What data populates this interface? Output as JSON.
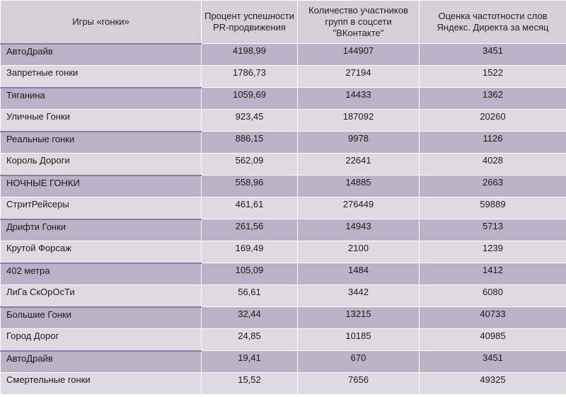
{
  "table": {
    "headers": [
      "Игры «гонки»",
      "Процент успешности PR-продвижения",
      "Количество участников групп в соцсети \"ВКонтакте\"",
      "Оценка частотности слов Яндекс. Директа за месяц"
    ],
    "rows": [
      [
        "АвтоДрайв",
        "4198,99",
        "144907",
        "3451"
      ],
      [
        "Запретные гонки",
        "1786,73",
        "27194",
        "1522"
      ],
      [
        "Тяганина",
        "1059,69",
        "14433",
        "1362"
      ],
      [
        "Уличные Гонки",
        "923,45",
        "187092",
        "20260"
      ],
      [
        "Реальные гонки",
        "886,15",
        "9978",
        "1126"
      ],
      [
        "Король Дороги",
        "562,09",
        "22641",
        "4028"
      ],
      [
        "НОЧНЫЕ ГОНКИ",
        "558,96",
        "14885",
        "2663"
      ],
      [
        "СтритРейсеры",
        "461,61",
        "276449",
        "59889"
      ],
      [
        "Дрифти Гонки",
        "261,56",
        "14943",
        "5713"
      ],
      [
        "Крутой Форсаж",
        "169,49",
        "2100",
        "1239"
      ],
      [
        "402 метра",
        "105,09",
        "1484",
        "1412"
      ],
      [
        "ЛиГа СкОрОсТи",
        "56,61",
        "3442",
        "6080"
      ],
      [
        "Большие Гонки",
        "32,44",
        "13215",
        "40733"
      ],
      [
        "Город Дорог",
        "24,85",
        "10185",
        "40985"
      ],
      [
        "АвтоДрайв",
        "19,41",
        "670",
        "3451"
      ],
      [
        "Смертельные гонки",
        "15,52",
        "7656",
        "49325"
      ]
    ]
  },
  "colors": {
    "header": "#d4d0d7",
    "row_dark": "#bab3c8",
    "row_light": "#dedae2"
  }
}
